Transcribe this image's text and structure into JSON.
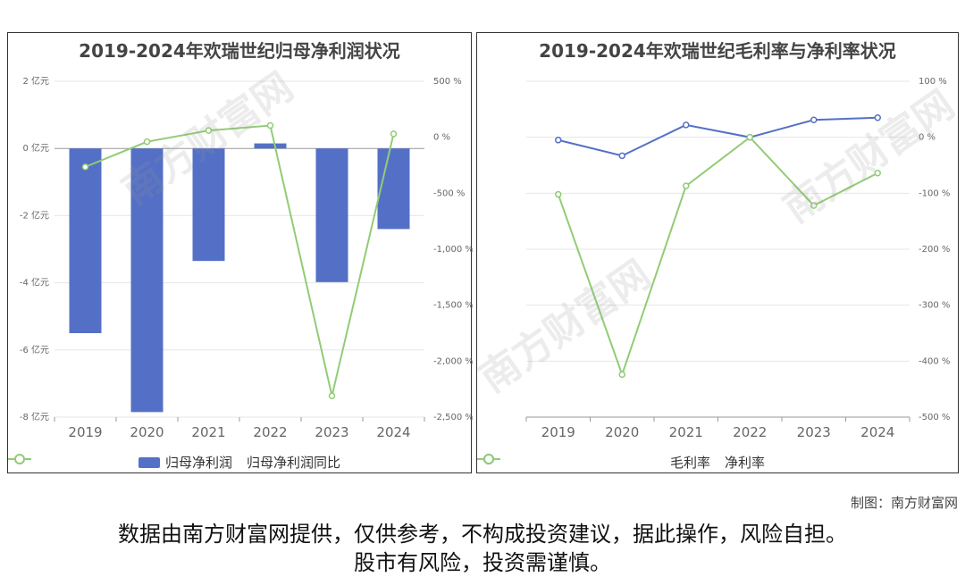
{
  "colors": {
    "bar": "#5470c6",
    "line_green": "#91cc75",
    "line_blue": "#5470c6"
  },
  "watermark": "南方财富网",
  "credit": "制图：南方财富网",
  "disclaimer_line1": "数据由南方财富网提供，仅供参考，不构成投资建议，据此操作，风险自担。",
  "disclaimer_line2": "股市有风险，投资需谨慎。",
  "chart_data": [
    {
      "type": "bar",
      "title": "2019-2024年欢瑞世纪归母净利润状况",
      "categories": [
        "2019",
        "2020",
        "2021",
        "2022",
        "2023",
        "2024"
      ],
      "ylim": [
        -8,
        2
      ],
      "y_ticks": [
        "2 亿元",
        "0 亿元",
        "-2 亿元",
        "-4 亿元",
        "-6 亿元",
        "-8 亿元"
      ],
      "y2lim": [
        -2500,
        500
      ],
      "y2_ticks": [
        "500 %",
        "0 %",
        "-500 %",
        "-1,000 %",
        "-1,500 %",
        "-2,000 %",
        "-2,500 %"
      ],
      "series": [
        {
          "name": "归母净利润",
          "type": "bar",
          "values": [
            -5.5,
            -7.85,
            -3.35,
            0.15,
            -3.98,
            -2.4
          ]
        },
        {
          "name": "归母净利润同比",
          "type": "line",
          "axis": "right",
          "values": [
            -265,
            -40,
            60,
            105,
            -2310,
            30
          ]
        }
      ],
      "legend": "bottom-center"
    },
    {
      "type": "line",
      "title": "2019-2024年欢瑞世纪毛利率与净利率状况",
      "categories": [
        "2019",
        "2020",
        "2021",
        "2022",
        "2023",
        "2024"
      ],
      "ylim": [
        -500,
        100
      ],
      "y_ticks": [
        "100 %",
        "0 %",
        "-100 %",
        "-200 %",
        "-300 %",
        "-400 %",
        "-500 %"
      ],
      "series": [
        {
          "name": "毛利率",
          "values": [
            -5,
            -33,
            22,
            0,
            31,
            35
          ]
        },
        {
          "name": "净利率",
          "values": [
            -102,
            -424,
            -87,
            0,
            -122,
            -64
          ]
        }
      ],
      "legend": "bottom-center"
    }
  ]
}
